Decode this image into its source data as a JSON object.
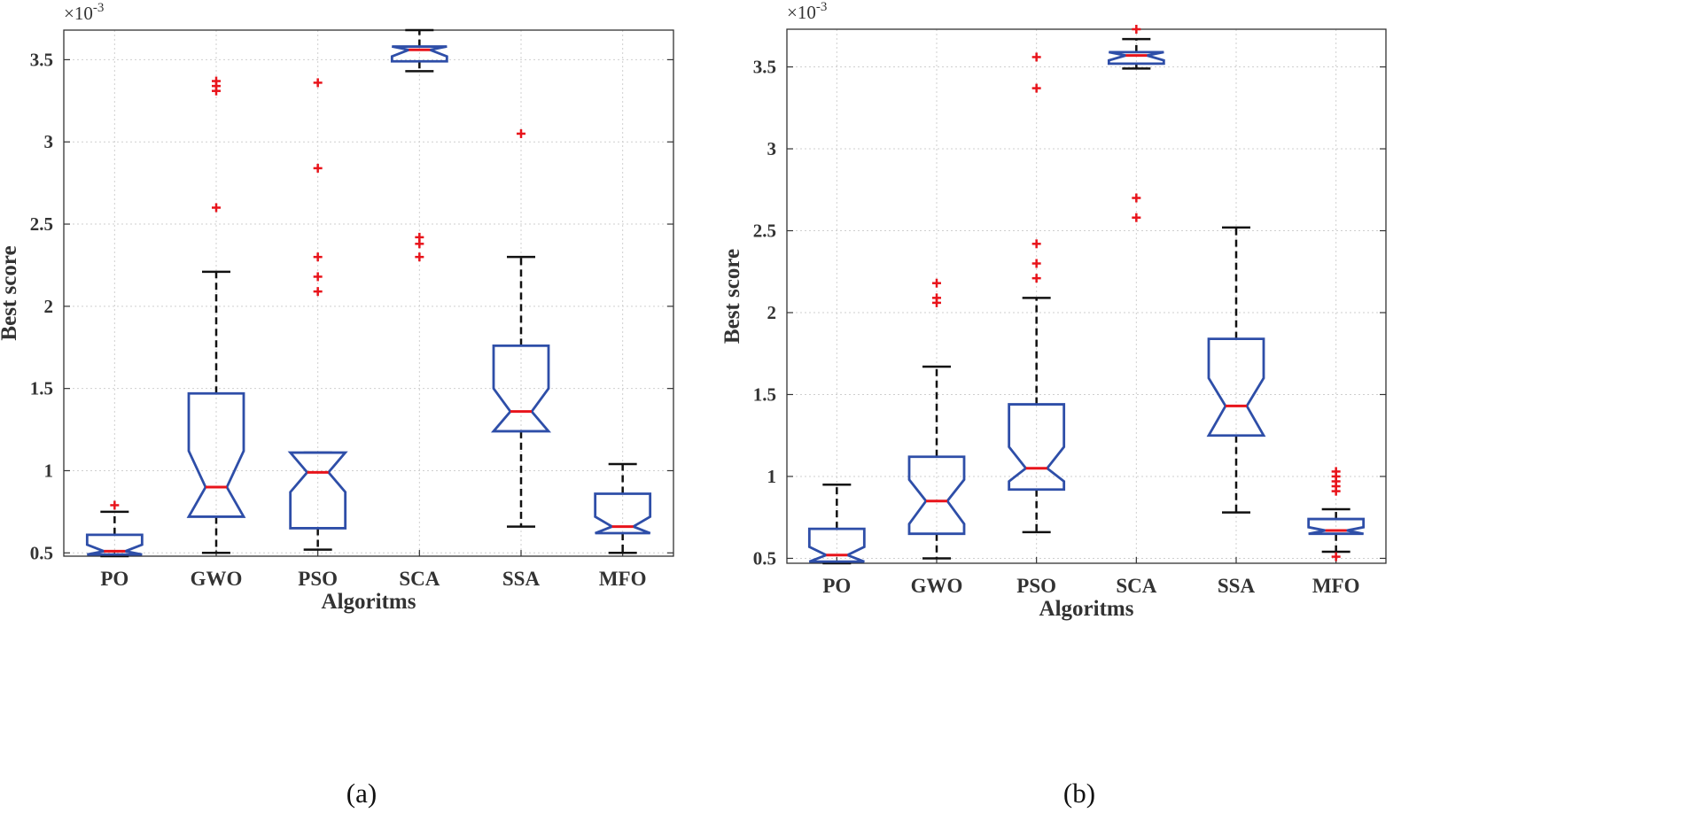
{
  "figure": {
    "captions": [
      "(a)",
      "(b)"
    ]
  },
  "colors": {
    "box": "#2e4ea8",
    "median": "#e8141b",
    "whisker": "#111111",
    "outlier": "#e8141b",
    "axis": "#333333",
    "grid": "#cfcfcf"
  },
  "chart_data": [
    {
      "type": "box",
      "caption": "(a)",
      "xlabel": "Algoritms",
      "ylabel": "Best score",
      "y_exponent": "×10",
      "y_exponent_power": "-3",
      "ylim": [
        0.48,
        3.68
      ],
      "yticks": [
        0.5,
        1,
        1.5,
        2,
        2.5,
        3,
        3.5
      ],
      "ytick_labels": [
        "0.5",
        "1",
        "1.5",
        "2",
        "2.5",
        "3",
        "3.5"
      ],
      "grid": true,
      "notched": true,
      "categories": [
        "PO",
        "GWO",
        "PSO",
        "SCA",
        "SSA",
        "MFO"
      ],
      "boxes": [
        {
          "name": "PO",
          "whisker_low": 0.48,
          "q1": 0.49,
          "notch_low": 0.49,
          "median": 0.51,
          "notch_high": 0.55,
          "q3": 0.61,
          "whisker_high": 0.75,
          "outliers": [
            0.79
          ]
        },
        {
          "name": "GWO",
          "whisker_low": 0.5,
          "q1": 0.72,
          "notch_low": 0.72,
          "median": 0.9,
          "notch_high": 1.12,
          "q3": 1.47,
          "whisker_high": 2.21,
          "outliers": [
            2.6,
            3.31,
            3.34,
            3.37
          ]
        },
        {
          "name": "PSO",
          "whisker_low": 0.52,
          "q1": 0.65,
          "notch_low": 0.87,
          "median": 0.99,
          "notch_high": 1.11,
          "q3": 1.11,
          "whisker_high": 1.11,
          "outliers": [
            2.09,
            2.18,
            2.3,
            2.84,
            3.36
          ]
        },
        {
          "name": "SCA",
          "whisker_low": 3.43,
          "q1": 3.49,
          "notch_low": 3.52,
          "median": 3.56,
          "notch_high": 3.58,
          "q3": 3.58,
          "whisker_high": 3.68,
          "outliers": [
            2.3,
            2.38,
            2.42
          ]
        },
        {
          "name": "SSA",
          "whisker_low": 0.66,
          "q1": 1.24,
          "notch_low": 1.24,
          "median": 1.36,
          "notch_high": 1.5,
          "q3": 1.76,
          "whisker_high": 2.3,
          "outliers": [
            3.05
          ]
        },
        {
          "name": "MFO",
          "whisker_low": 0.5,
          "q1": 0.62,
          "notch_low": 0.62,
          "median": 0.66,
          "notch_high": 0.72,
          "q3": 0.86,
          "whisker_high": 1.04,
          "outliers": []
        }
      ]
    },
    {
      "type": "box",
      "caption": "(b)",
      "xlabel": "Algoritms",
      "ylabel": "Best score",
      "y_exponent": "×10",
      "y_exponent_power": "-3",
      "ylim": [
        0.47,
        3.73
      ],
      "yticks": [
        0.5,
        1,
        1.5,
        2,
        2.5,
        3,
        3.5
      ],
      "ytick_labels": [
        "0.5",
        "1",
        "1.5",
        "2",
        "2.5",
        "3",
        "3.5"
      ],
      "grid": true,
      "notched": true,
      "categories": [
        "PO",
        "GWO",
        "PSO",
        "SCA",
        "SSA",
        "MFO"
      ],
      "boxes": [
        {
          "name": "PO",
          "whisker_low": 0.47,
          "q1": 0.48,
          "notch_low": 0.48,
          "median": 0.52,
          "notch_high": 0.57,
          "q3": 0.68,
          "whisker_high": 0.95,
          "outliers": []
        },
        {
          "name": "GWO",
          "whisker_low": 0.5,
          "q1": 0.65,
          "notch_low": 0.71,
          "median": 0.85,
          "notch_high": 0.98,
          "q3": 1.12,
          "whisker_high": 1.67,
          "outliers": [
            2.06,
            2.09,
            2.18
          ]
        },
        {
          "name": "PSO",
          "whisker_low": 0.66,
          "q1": 0.92,
          "notch_low": 0.97,
          "median": 1.05,
          "notch_high": 1.18,
          "q3": 1.44,
          "whisker_high": 2.09,
          "outliers": [
            2.21,
            2.3,
            2.42,
            3.37,
            3.56
          ]
        },
        {
          "name": "SCA",
          "whisker_low": 3.49,
          "q1": 3.52,
          "notch_low": 3.54,
          "median": 3.57,
          "notch_high": 3.59,
          "q3": 3.59,
          "whisker_high": 3.67,
          "outliers": [
            2.58,
            2.7,
            3.73
          ]
        },
        {
          "name": "SSA",
          "whisker_low": 0.78,
          "q1": 1.25,
          "notch_low": 1.25,
          "median": 1.43,
          "notch_high": 1.6,
          "q3": 1.84,
          "whisker_high": 2.52,
          "outliers": []
        },
        {
          "name": "MFO",
          "whisker_low": 0.54,
          "q1": 0.65,
          "notch_low": 0.65,
          "median": 0.67,
          "notch_high": 0.69,
          "q3": 0.74,
          "whisker_high": 0.8,
          "outliers": [
            0.51,
            0.91,
            0.94,
            0.97,
            1.0,
            1.03
          ]
        }
      ]
    }
  ]
}
